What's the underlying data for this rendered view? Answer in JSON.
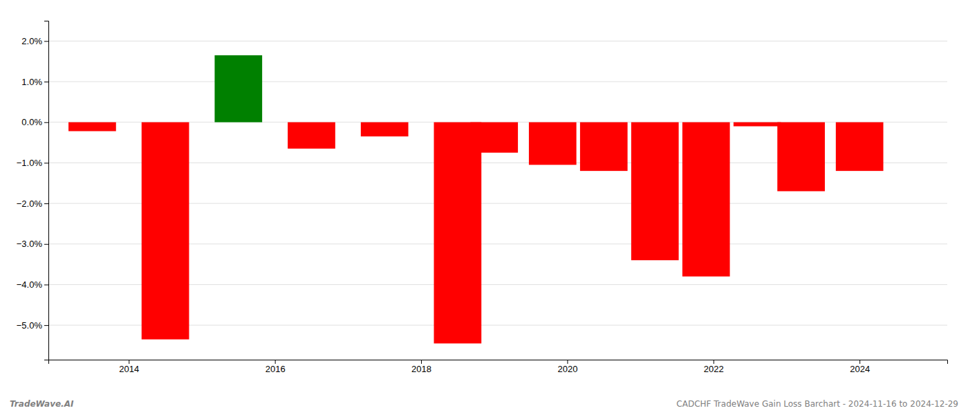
{
  "chart_data": {
    "type": "bar",
    "x": [
      2013.5,
      2014.5,
      2015.5,
      2016.5,
      2017.5,
      2018.5,
      2019.0,
      2019.8,
      2020.5,
      2021.2,
      2021.9,
      2022.6,
      2023.2,
      2024.0
    ],
    "values": [
      -0.22,
      -5.35,
      1.65,
      -0.65,
      -0.35,
      -5.45,
      -0.75,
      -1.05,
      -1.2,
      -3.4,
      -3.8,
      -0.1,
      -1.7,
      -1.2
    ],
    "colors": [
      "#ff0000",
      "#ff0000",
      "#008000",
      "#ff0000",
      "#ff0000",
      "#ff0000",
      "#ff0000",
      "#ff0000",
      "#ff0000",
      "#ff0000",
      "#ff0000",
      "#ff0000",
      "#ff0000",
      "#ff0000"
    ],
    "xlim": [
      2012.9,
      2025.2
    ],
    "xticks": [
      2014,
      2016,
      2018,
      2020,
      2022,
      2024
    ],
    "ylim": [
      -5.85,
      2.5
    ],
    "yticks": [
      {
        "value": 2.0,
        "label": "2.0%"
      },
      {
        "value": 1.0,
        "label": "1.0%"
      },
      {
        "value": 0.0,
        "label": "0.0%"
      },
      {
        "value": -1.0,
        "label": "−1.0%"
      },
      {
        "value": -2.0,
        "label": "−2.0%"
      },
      {
        "value": -3.0,
        "label": "−3.0%"
      },
      {
        "value": -4.0,
        "label": "−4.0%"
      },
      {
        "value": -5.0,
        "label": "−5.0%"
      }
    ],
    "grid": true,
    "annotations": [
      "TradeWave.AI",
      "CADCHF TradeWave Gain Loss Barchart - 2024-11-16 to 2024-12-29"
    ]
  }
}
